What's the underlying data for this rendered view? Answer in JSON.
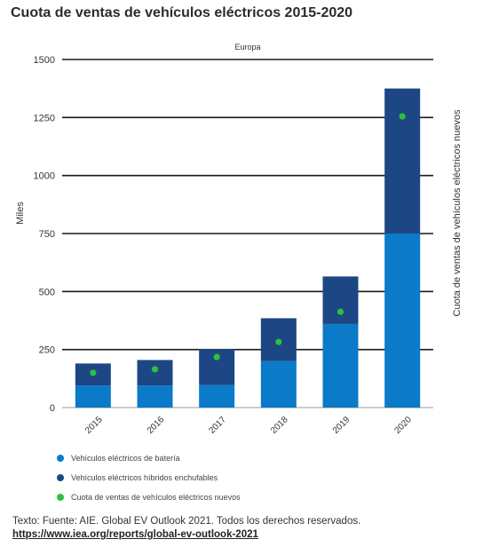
{
  "title": "Cuota de ventas de vehículos eléctricos 2015-2020",
  "colors": {
    "bev": "#0a7ac9",
    "phev": "#1c4784",
    "share": "#2cc23a",
    "grid": "#1a1a1a",
    "baseline": "#9a9a9a"
  },
  "chart_data": {
    "type": "bar",
    "subtitle": "Europa",
    "categories": [
      "2015",
      "2016",
      "2017",
      "2018",
      "2019",
      "2020"
    ],
    "series": [
      {
        "name": "Vehículos eléctricos de batería",
        "values": [
          95,
          95,
          97,
          200,
          360,
          750
        ]
      },
      {
        "name": "Vehículos eléctricos híbridos enchufables",
        "values": [
          95,
          110,
          155,
          185,
          205,
          625
        ]
      }
    ],
    "secondary_series": {
      "name": "Cuota de ventas de vehículos eléctricos nuevos",
      "plotted_at": [
        150,
        165,
        218,
        283,
        413,
        1255
      ]
    },
    "ylabel": "Miles",
    "y2label": "Cuota de ventas de vehículos eléctricos nuevos",
    "ylim": [
      0,
      1500
    ],
    "yticks": [
      0,
      250,
      500,
      750,
      1000,
      1250,
      1500
    ],
    "stacked": true,
    "grid": true,
    "legend_position": "bottom-left"
  },
  "footer": {
    "source": "Texto: Fuente: AIE. Global EV Outlook 2021. Todos los derechos reservados.",
    "link": "https://www.iea.org/reports/global-ev-outlook-2021"
  }
}
